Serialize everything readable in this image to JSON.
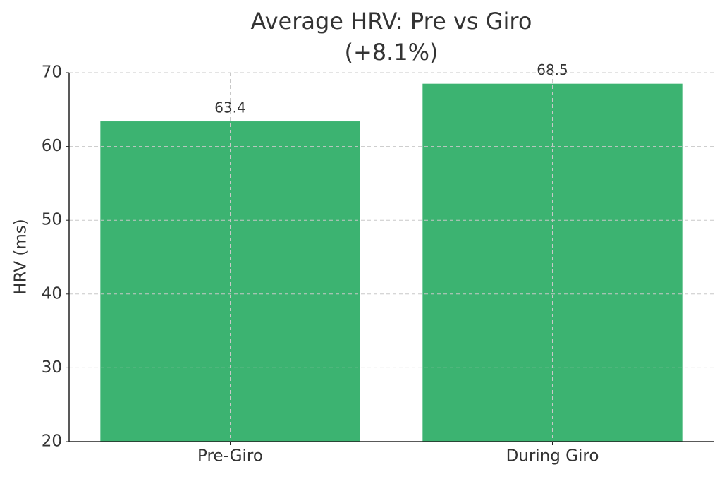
{
  "chart_data": {
    "type": "bar",
    "title": "Average HRV: Pre vs Giro",
    "subtitle": "(+8.1%)",
    "y_label": "HRV (ms)",
    "categories": [
      "Pre-Giro",
      "During Giro"
    ],
    "values": [
      63.4,
      68.5
    ],
    "color": "#3cb371",
    "ylim": [
      20,
      70
    ],
    "yticks": [
      20,
      30,
      40,
      50,
      60,
      70
    ],
    "grid": true
  }
}
